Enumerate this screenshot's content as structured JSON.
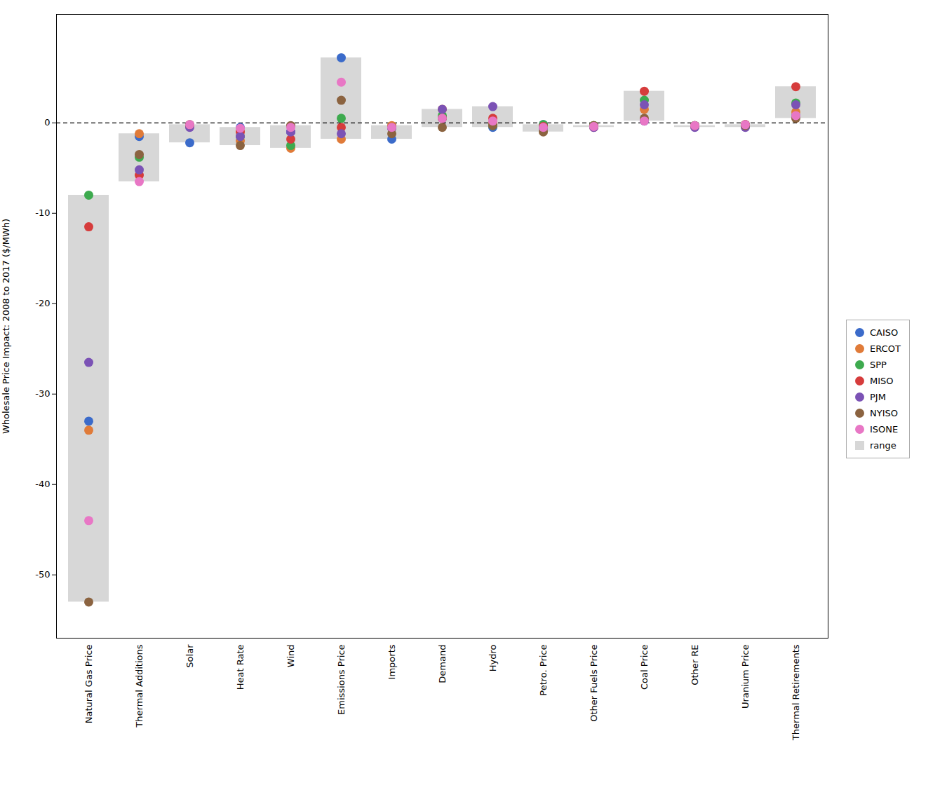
{
  "chart_data": {
    "type": "dot",
    "categories": [
      "Natural Gas Price",
      "Thermal Additions",
      "Solar",
      "Heat Rate",
      "Wind",
      "Emissions Price",
      "Imports",
      "Demand",
      "Hydro",
      "Petro. Price",
      "Other Fuels Price",
      "Coal Price",
      "Other RE",
      "Uranium Price",
      "Thermal Retirements"
    ],
    "series": [
      {
        "name": "CAISO",
        "color": "#3b6bca",
        "values": [
          -33.0,
          -1.5,
          -2.2,
          -0.5,
          -1.0,
          7.2,
          -1.8,
          0.5,
          -0.5,
          -0.2,
          -0.3,
          0.2,
          -0.3,
          -0.4,
          0.8
        ]
      },
      {
        "name": "ERCOT",
        "color": "#e07b39",
        "values": [
          -34.0,
          -1.2,
          -0.4,
          -2.0,
          -2.8,
          -1.8,
          -0.3,
          1.5,
          0.0,
          -0.4,
          -0.3,
          1.5,
          -0.3,
          -0.2,
          1.2
        ]
      },
      {
        "name": "SPP",
        "color": "#3daa4e",
        "values": [
          -8.0,
          -3.8,
          -0.3,
          -1.5,
          -2.5,
          0.5,
          -0.5,
          0.8,
          -0.3,
          -0.2,
          -0.3,
          2.5,
          -0.3,
          -0.2,
          2.2
        ]
      },
      {
        "name": "MISO",
        "color": "#d63c3c",
        "values": [
          -11.5,
          -5.8,
          -0.3,
          -1.0,
          -1.8,
          -0.5,
          -0.5,
          0.5,
          0.5,
          -0.4,
          -0.5,
          3.5,
          -0.4,
          -0.2,
          4.0
        ]
      },
      {
        "name": "PJM",
        "color": "#7b52b5",
        "values": [
          -26.5,
          -5.2,
          -0.5,
          -1.5,
          -1.0,
          -1.2,
          -0.6,
          1.5,
          1.8,
          -0.6,
          -0.5,
          2.0,
          -0.5,
          -0.5,
          2.0
        ]
      },
      {
        "name": "NYISO",
        "color": "#8b6340",
        "values": [
          -53.0,
          -3.5,
          -0.2,
          -2.5,
          -0.3,
          2.5,
          -1.2,
          -0.5,
          -0.3,
          -1.0,
          -0.3,
          0.5,
          -0.3,
          -0.3,
          0.5
        ]
      },
      {
        "name": "ISONE",
        "color": "#e877c5",
        "values": [
          -44.0,
          -6.5,
          -0.2,
          -0.6,
          -0.5,
          4.5,
          -0.5,
          0.5,
          0.2,
          -0.5,
          -0.4,
          0.2,
          -0.3,
          -0.2,
          0.8
        ]
      }
    ],
    "range": {
      "name": "range",
      "color": "#d0d0d0",
      "min": [
        -53.0,
        -6.5,
        -2.2,
        -2.5,
        -2.8,
        -1.8,
        -1.8,
        -0.5,
        -0.5,
        -1.0,
        -0.5,
        0.2,
        -0.5,
        -0.5,
        0.5
      ],
      "max": [
        -8.0,
        -1.2,
        -0.2,
        -0.5,
        -0.3,
        7.2,
        -0.3,
        1.5,
        1.8,
        -0.2,
        -0.3,
        3.5,
        -0.3,
        -0.2,
        4.0
      ]
    },
    "reference_line": {
      "y": 0,
      "color": "black",
      "line_style": "dashed"
    },
    "ylabel": "Wholesale Price Impact: 2008 to 2017 ($/MWh)",
    "ylim": [
      -57,
      12
    ],
    "yticks": [
      0,
      -10,
      -20,
      -30,
      -40,
      -50
    ],
    "grid": false,
    "legend": "right"
  }
}
